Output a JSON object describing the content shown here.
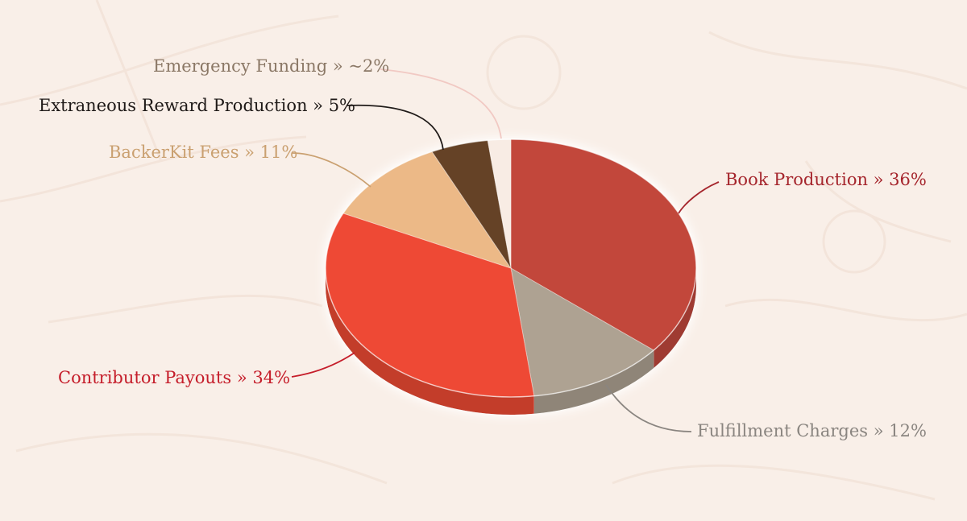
{
  "chart_data": {
    "type": "pie",
    "title": "",
    "slices": [
      {
        "label": "Book Production » 36%",
        "name": "Book Production",
        "value": 36,
        "color": "#c2473a",
        "text_color": "#a5252c"
      },
      {
        "label": "Fulfillment Charges » 12%",
        "name": "Fulfillment Charges",
        "value": 12,
        "color": "#aea292",
        "text_color": "#8a8580"
      },
      {
        "label": "Contributor Payouts » 34%",
        "name": "Contributor Payouts",
        "value": 34,
        "color": "#ee4a36",
        "text_color": "#c51d2a"
      },
      {
        "label": "BackerKit Fees » 11%",
        "name": "BackerKit Fees",
        "value": 11,
        "color": "#ecb987",
        "text_color": "#caa070"
      },
      {
        "label": "Extraneous Reward Production » 5%",
        "name": "Extraneous Reward Production",
        "value": 5,
        "color": "#654226",
        "text_color": "#1f1a18"
      },
      {
        "label": "Emergency Funding » ~2%",
        "name": "Emergency Funding",
        "value": 2,
        "color": "#f8ece4",
        "text_color": "#8b7866"
      }
    ],
    "legend": "none",
    "grid": false
  }
}
